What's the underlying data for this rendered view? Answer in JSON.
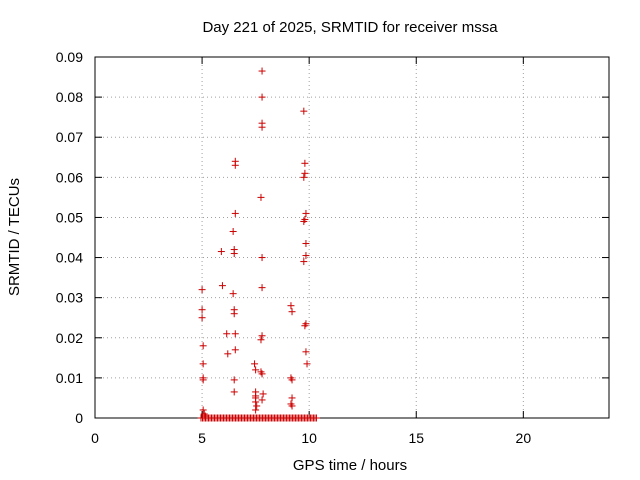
{
  "chart_data": {
    "type": "scatter",
    "title": "Day 221 of 2025, SRMTID for receiver mssa",
    "xlabel": "GPS time / hours",
    "ylabel": "SRMTID / TECUs",
    "xlim": [
      0,
      24
    ],
    "ylim": [
      0,
      0.09
    ],
    "xticks": [
      0,
      5,
      10,
      15,
      20
    ],
    "yticks": [
      0,
      0.01,
      0.02,
      0.03,
      0.04,
      0.05,
      0.06,
      0.07,
      0.08,
      0.09
    ],
    "xtick_labels": [
      "0",
      "5",
      "10",
      "15",
      "20"
    ],
    "ytick_labels": [
      "0",
      "0.01",
      "0.02",
      "0.03",
      "0.04",
      "0.05",
      "0.06",
      "0.07",
      "0.08",
      "0.09"
    ],
    "grid": true,
    "marker": "+",
    "color": "#cc0000",
    "series": [
      {
        "name": "mssa",
        "points": [
          [
            5.0,
            0.032
          ],
          [
            5.0,
            0.027
          ],
          [
            5.0,
            0.025
          ],
          [
            5.05,
            0.018
          ],
          [
            5.05,
            0.0135
          ],
          [
            5.05,
            0.01
          ],
          [
            5.05,
            0.0095
          ],
          [
            5.05,
            0.002
          ],
          [
            5.1,
            0.001
          ],
          [
            5.15,
            0.0005
          ],
          [
            5.9,
            0.0415
          ],
          [
            5.95,
            0.033
          ],
          [
            6.15,
            0.021
          ],
          [
            6.2,
            0.016
          ],
          [
            6.45,
            0.0465
          ],
          [
            6.5,
            0.042
          ],
          [
            6.5,
            0.041
          ],
          [
            6.45,
            0.031
          ],
          [
            6.5,
            0.027
          ],
          [
            6.5,
            0.026
          ],
          [
            6.55,
            0.021
          ],
          [
            6.55,
            0.017
          ],
          [
            6.5,
            0.0095
          ],
          [
            6.5,
            0.0065
          ],
          [
            6.55,
            0.064
          ],
          [
            6.55,
            0.063
          ],
          [
            6.55,
            0.051
          ],
          [
            7.45,
            0.0135
          ],
          [
            7.5,
            0.012
          ],
          [
            7.5,
            0.0065
          ],
          [
            7.5,
            0.0055
          ],
          [
            7.5,
            0.005
          ],
          [
            7.5,
            0.004
          ],
          [
            7.55,
            0.003
          ],
          [
            7.5,
            0.002
          ],
          [
            7.8,
            0.0865
          ],
          [
            7.8,
            0.08
          ],
          [
            7.8,
            0.0735
          ],
          [
            7.8,
            0.0725
          ],
          [
            7.75,
            0.055
          ],
          [
            7.8,
            0.04
          ],
          [
            7.8,
            0.0325
          ],
          [
            7.8,
            0.0205
          ],
          [
            7.75,
            0.0195
          ],
          [
            7.75,
            0.0115
          ],
          [
            7.8,
            0.011
          ],
          [
            7.85,
            0.006
          ],
          [
            7.8,
            0.0045
          ],
          [
            9.15,
            0.028
          ],
          [
            9.2,
            0.0265
          ],
          [
            9.15,
            0.01
          ],
          [
            9.2,
            0.0095
          ],
          [
            9.2,
            0.005
          ],
          [
            9.15,
            0.0035
          ],
          [
            9.2,
            0.003
          ],
          [
            9.75,
            0.0765
          ],
          [
            9.8,
            0.0635
          ],
          [
            9.8,
            0.061
          ],
          [
            9.75,
            0.06
          ],
          [
            9.85,
            0.051
          ],
          [
            9.8,
            0.0495
          ],
          [
            9.75,
            0.049
          ],
          [
            9.85,
            0.0435
          ],
          [
            9.85,
            0.0405
          ],
          [
            9.75,
            0.039
          ],
          [
            9.85,
            0.0235
          ],
          [
            9.8,
            0.023
          ],
          [
            9.85,
            0.0165
          ],
          [
            9.9,
            0.0135
          ]
        ],
        "baseline": {
          "description": "dense row of points at 0 from 4.95 to 10.35 hours",
          "x_from": 4.95,
          "x_to": 10.35,
          "step": 0.07,
          "y": 0
        }
      }
    ]
  }
}
